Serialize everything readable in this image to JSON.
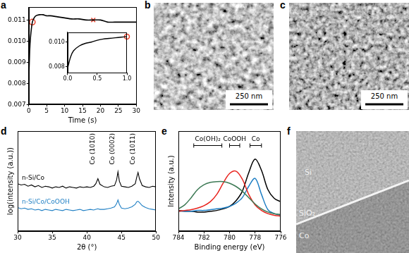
{
  "panel_labels": [
    "a",
    "b",
    "c",
    "d",
    "e",
    "f"
  ],
  "chart_data": [
    {
      "type": "line",
      "x": [
        0,
        0.25,
        0.5,
        1,
        1.5,
        2,
        3,
        4,
        5,
        6,
        8,
        10,
        12,
        14,
        16,
        18,
        20,
        22,
        24,
        26,
        28,
        30
      ],
      "series": [
        {
          "color": "#000000",
          "values": [
            0.008,
            0.0095,
            0.0102,
            0.0109,
            0.0111,
            0.0112,
            0.01125,
            0.01125,
            0.0112,
            0.0112,
            0.01115,
            0.0111,
            0.01105,
            0.01105,
            0.011,
            0.011,
            0.011,
            0.0109,
            0.0109,
            0.0109,
            0.0109,
            0.0109
          ]
        },
        {
          "type": "scatter",
          "marker": "circle",
          "color": "#e8412c",
          "x": [
            1
          ],
          "values": [
            0.0109
          ]
        },
        {
          "type": "scatter",
          "marker": "cross",
          "color": "#e8412c",
          "x": [
            18
          ],
          "values": [
            0.011
          ]
        }
      ],
      "xlabel": "Time (s)",
      "xlim": [
        0,
        30
      ],
      "xticks": [
        0,
        5,
        10,
        15,
        20,
        25,
        30
      ],
      "ylim": [
        0.007,
        0.0116
      ],
      "yticks": [
        0.007,
        0.008,
        0.009,
        {
          "value": 0.01,
          "label": "0.010"
        },
        0.011
      ]
    },
    {
      "type": "line",
      "x": [
        0,
        0.05,
        0.1,
        0.2,
        0.3,
        0.4,
        0.5,
        0.6,
        0.7,
        0.8,
        0.9,
        1
      ],
      "series": [
        {
          "color": "#000000",
          "values": [
            0.0079,
            0.0088,
            0.0093,
            0.0097,
            0.0099,
            0.01,
            0.01015,
            0.01025,
            0.0103,
            0.01035,
            0.0104,
            0.01045
          ]
        },
        {
          "type": "scatter",
          "marker": "circle",
          "color": "#e8412c",
          "x": [
            1
          ],
          "values": [
            0.01045
          ]
        }
      ],
      "xlim": [
        0,
        1
      ],
      "xticks": [
        {
          "value": 0,
          "label": "0.0"
        },
        0.5,
        {
          "value": 1,
          "label": "1.0"
        }
      ],
      "ylim": [
        0.0075,
        0.0108
      ],
      "yticks": [
        0.008,
        {
          "value": 0.01,
          "label": "0.010"
        }
      ]
    },
    {
      "type": "line",
      "x": [
        30,
        30.5,
        31,
        31.5,
        32,
        32.5,
        33,
        33.5,
        34,
        34.5,
        35,
        35.5,
        36,
        36.5,
        37,
        37.5,
        38,
        38.5,
        39,
        39.5,
        40,
        40.5,
        41,
        41.3,
        41.6,
        41.9,
        42.5,
        43,
        43.5,
        44,
        44.3,
        44.5,
        44.7,
        45,
        45.5,
        46,
        46.5,
        47,
        47.2,
        47.4,
        47.6,
        48,
        48.5,
        49,
        49.5,
        50
      ],
      "series": [
        {
          "name": "n-Si/Co",
          "color": "#000000",
          "values": [
            7.6,
            7.4,
            7.5,
            7.2,
            7.4,
            7.1,
            7.3,
            7.0,
            7.2,
            7.1,
            6.9,
            7.1,
            7.0,
            7.2,
            6.9,
            7.1,
            7.0,
            6.9,
            7.1,
            7.0,
            7.1,
            7.0,
            7.2,
            7.6,
            8.4,
            7.5,
            7.1,
            7.0,
            7.2,
            7.3,
            8.2,
            9.5,
            8.0,
            7.2,
            7.1,
            7.0,
            7.2,
            7.6,
            8.6,
            9.4,
            8.4,
            7.3,
            7.1,
            7.0,
            7.2,
            7.1
          ]
        },
        {
          "name": "n-Si/Co/CoOOH",
          "color": "#1f7fc4",
          "values": [
            3.8,
            3.6,
            3.7,
            3.5,
            3.6,
            3.4,
            3.5,
            3.3,
            3.5,
            3.4,
            3.3,
            3.5,
            3.4,
            3.3,
            3.5,
            3.4,
            3.3,
            3.4,
            3.5,
            3.3,
            3.4,
            3.5,
            3.4,
            3.5,
            3.6,
            3.5,
            3.5,
            3.6,
            3.7,
            3.9,
            4.4,
            5.0,
            4.3,
            3.7,
            3.6,
            3.7,
            3.9,
            4.3,
            4.7,
            4.8,
            4.6,
            4.1,
            3.8,
            3.6,
            3.5,
            3.4
          ]
        }
      ],
      "annotations": [
        {
          "text": "Co (101̄0)",
          "x": 41.6
        },
        {
          "text": "Co (0002)",
          "x": 44.5
        },
        {
          "text": "Co (101̄1)",
          "x": 47.4
        }
      ],
      "xlabel": "2θ (°)",
      "ylabel": "log(intensity (a.u.))",
      "xlim": [
        30,
        50
      ],
      "xticks": [
        30,
        35,
        40,
        45,
        50
      ],
      "ylim": [
        0,
        16
      ],
      "tick_labels": "x"
    },
    {
      "type": "line",
      "x": [
        784,
        783.5,
        783,
        782.5,
        782,
        781.5,
        781,
        780.5,
        780,
        779.5,
        779,
        778.5,
        778,
        777.5,
        777,
        776.5,
        776
      ],
      "series": [
        {
          "color": "#3d7a55",
          "values": [
            2.8,
            3.3,
            4.2,
            5.2,
            5.8,
            6.1,
            6.2,
            6.2,
            6.0,
            5.6,
            5.0,
            4.2,
            3.4,
            2.8,
            2.4,
            2.2,
            2.1
          ]
        },
        {
          "color": "#e8231d",
          "values": [
            2.5,
            2.6,
            2.7,
            2.9,
            3.2,
            3.7,
            4.6,
            6.0,
            7.2,
            7.5,
            6.5,
            4.6,
            3.3,
            2.6,
            2.2,
            2.0,
            1.9
          ]
        },
        {
          "color": "#1f7fc4",
          "values": [
            2.5,
            2.5,
            2.5,
            2.6,
            2.6,
            2.7,
            2.8,
            2.9,
            3.1,
            3.5,
            4.2,
            5.6,
            6.6,
            4.6,
            2.7,
            2.2,
            2.0
          ]
        },
        {
          "color": "#000000",
          "values": [
            2.6,
            2.5,
            2.5,
            2.4,
            2.4,
            2.5,
            2.6,
            2.8,
            3.1,
            3.8,
            5.0,
            7.3,
            9.0,
            7.6,
            5.2,
            4.1,
            3.7
          ]
        }
      ],
      "ranges": [
        {
          "label": "Co(OH)₂",
          "from": 782.8,
          "to": 780.6
        },
        {
          "label": "CoOOH",
          "from": 780.0,
          "to": 779.2
        },
        {
          "label": "Co",
          "from": 778.4,
          "to": 777.5
        }
      ],
      "xlabel": "Binding energy (eV)",
      "ylabel": "Intensity (a.u.)",
      "xlim": [
        784,
        776
      ],
      "xticks": [
        784,
        782,
        780,
        778,
        776
      ],
      "ylim": [
        0,
        12.5
      ],
      "tick_labels": "x"
    }
  ],
  "images": [
    {
      "scale_bar": "250 nm"
    },
    {
      "scale_bar": "250 nm"
    },
    {
      "labels": [
        "Si",
        "SiO₂",
        "Co"
      ]
    }
  ]
}
